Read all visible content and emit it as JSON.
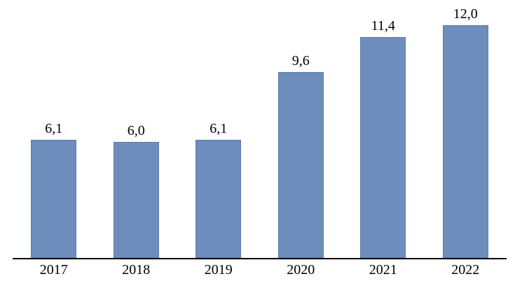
{
  "chart_data": {
    "type": "bar",
    "title": "",
    "xlabel": "",
    "ylabel": "",
    "categories": [
      "2017",
      "2018",
      "2019",
      "2020",
      "2021",
      "2022"
    ],
    "values": [
      6.1,
      6.0,
      6.1,
      9.6,
      11.4,
      12.0
    ],
    "value_labels": [
      "6,1",
      "6,0",
      "6,1",
      "9,6",
      "11,4",
      "12,0"
    ],
    "decimal_separator": ",",
    "ylim": [
      0,
      13.3
    ],
    "grid": false,
    "legend": false,
    "y_axis_visible": false,
    "x_axis_line": true,
    "colors": {
      "bar_fill": "#6D8EBD",
      "bar_border": "#5B7CAC",
      "axis_line": "#000000",
      "label_text": "#000000",
      "background": "#ffffff"
    }
  }
}
